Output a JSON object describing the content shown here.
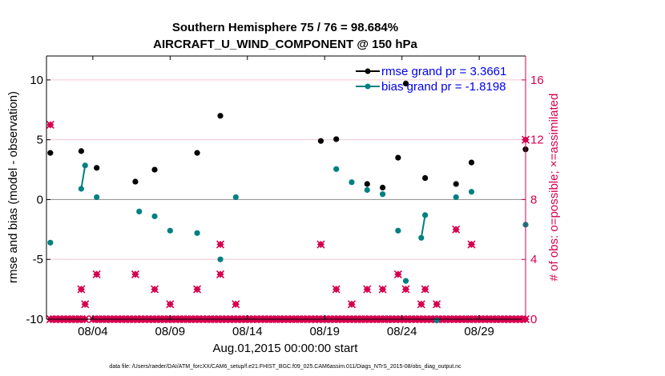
{
  "chart_data": {
    "type": "scatter",
    "title": "Southern Hemisphere 75 / 76 = 98.684%",
    "subtitle": "AIRCRAFT_U_WIND_COMPONENT @ 150 hPa",
    "xlabel": "Aug.01,2015 00:00:00 start",
    "ylabel": "rmse and bias (model - observation)",
    "ylabel_right": "# of obs: o=possible; ×=assimilated",
    "footer": "data file: /Users/raeder/DAI/ATM_forcXX/CAM6_setup/f.e21.FHIST_BGC.f09_025.CAM6assim.011/Diags_NTrS_2015-08/obs_diag_output.nc",
    "xlim": [
      1,
      32
    ],
    "ylim": [
      -10,
      12
    ],
    "ylim_right": [
      0,
      17.6
    ],
    "x_ticks": [
      {
        "x": 4,
        "label": "08/04"
      },
      {
        "x": 9,
        "label": "08/09"
      },
      {
        "x": 14,
        "label": "08/14"
      },
      {
        "x": 19,
        "label": "08/19"
      },
      {
        "x": 24,
        "label": "08/24"
      },
      {
        "x": 29,
        "label": "08/29"
      }
    ],
    "y_ticks": [
      -10,
      -5,
      0,
      5,
      10
    ],
    "y_ticks_right": [
      0,
      4,
      8,
      12,
      16
    ],
    "legend_position": "top-right",
    "series": [
      {
        "name": "rmse grand pr = 3.3661",
        "color": "#000000",
        "points": [
          [
            1.25,
            3.9
          ],
          [
            3.25,
            4.05
          ],
          [
            4.25,
            2.65
          ],
          [
            6.75,
            1.5
          ],
          [
            8,
            2.5
          ],
          [
            10.75,
            3.9
          ],
          [
            12.25,
            7.0
          ],
          [
            18.75,
            4.9
          ],
          [
            19.75,
            5.05
          ],
          [
            21.75,
            1.3
          ],
          [
            22.75,
            1.0
          ],
          [
            23.75,
            3.5
          ],
          [
            24.25,
            9.7
          ],
          [
            25.5,
            1.8
          ],
          [
            27.5,
            1.3
          ],
          [
            28.5,
            3.1
          ],
          [
            32,
            4.2
          ]
        ],
        "lines": [
          [
            3.25,
            3.5
          ]
        ]
      },
      {
        "name": "bias grand pr = -1.8198",
        "color": "#008080",
        "points": [
          [
            1.25,
            -3.6
          ],
          [
            3.25,
            0.9
          ],
          [
            3.5,
            2.85
          ],
          [
            4.25,
            0.2
          ],
          [
            7,
            -1.0
          ],
          [
            8,
            -1.4
          ],
          [
            9,
            -2.6
          ],
          [
            10.75,
            -2.8
          ],
          [
            12.25,
            -5.0
          ],
          [
            13.25,
            0.2
          ],
          [
            19.75,
            2.55
          ],
          [
            20.75,
            1.45
          ],
          [
            21.75,
            0.8
          ],
          [
            22.75,
            0.45
          ],
          [
            23.75,
            -2.6
          ],
          [
            24.25,
            -6.8
          ],
          [
            25.25,
            -3.2
          ],
          [
            25.5,
            -1.3
          ],
          [
            26.25,
            -10.1
          ],
          [
            27.5,
            0.2
          ],
          [
            28.5,
            0.65
          ],
          [
            32,
            -2.1
          ]
        ],
        "lines": [
          [
            3.25,
            3.5
          ],
          [
            25.25,
            25.5
          ]
        ]
      },
      {
        "name": "obs_possible",
        "color": "#d6004f",
        "ticks_axis": "right",
        "points": [
          [
            1.25,
            13
          ],
          [
            3.25,
            2
          ],
          [
            3.5,
            1
          ],
          [
            4.25,
            3
          ],
          [
            6.75,
            3
          ],
          [
            8,
            2
          ],
          [
            9,
            1
          ],
          [
            10.75,
            2
          ],
          [
            12.25,
            5
          ],
          [
            12.25,
            3
          ],
          [
            13.25,
            1
          ],
          [
            18.75,
            5
          ],
          [
            19.75,
            2
          ],
          [
            20.75,
            1
          ],
          [
            21.75,
            2
          ],
          [
            22.75,
            2
          ],
          [
            23.75,
            3
          ],
          [
            24.25,
            2
          ],
          [
            25.25,
            1
          ],
          [
            25.5,
            2
          ],
          [
            26.25,
            1
          ],
          [
            27.5,
            6
          ],
          [
            28.5,
            5
          ],
          [
            32,
            12
          ]
        ],
        "zero_x": [
          1.25,
          1.5,
          1.75,
          2,
          2.25,
          2.5,
          2.75,
          3,
          3.25,
          3.5,
          4,
          4.25,
          4.5,
          4.75,
          5,
          5.25,
          5.5,
          5.75,
          6,
          6.25,
          6.5,
          6.75,
          7,
          7.25,
          7.5,
          7.75,
          8,
          8.25,
          8.5,
          8.75,
          9,
          9.25,
          9.5,
          9.75,
          10,
          10.25,
          10.5,
          10.75,
          11,
          11.25,
          11.5,
          11.75,
          12,
          12.25,
          12.5,
          12.75,
          13,
          13.25,
          13.5,
          13.75,
          14,
          14.25,
          14.5,
          14.75,
          15,
          15.25,
          15.5,
          15.75,
          16,
          16.25,
          16.5,
          16.75,
          17,
          17.25,
          17.5,
          17.75,
          18,
          18.25,
          18.5,
          18.75,
          19,
          19.25,
          19.5,
          19.75,
          20,
          20.25,
          20.5,
          20.75,
          21,
          21.25,
          21.5,
          21.75,
          22,
          22.25,
          22.5,
          22.75,
          23,
          23.25,
          23.5,
          23.75,
          24,
          24.25,
          24.5,
          24.75,
          25,
          25.25,
          25.5,
          25.75,
          26,
          26.25,
          26.5,
          26.75,
          27,
          27.25,
          27.5,
          27.75,
          28,
          28.25,
          28.5,
          28.75,
          29,
          29.25,
          29.5,
          29.75,
          30,
          30.25,
          30.5,
          30.75,
          31,
          31.25,
          31.5,
          31.75,
          32
        ]
      }
    ]
  }
}
